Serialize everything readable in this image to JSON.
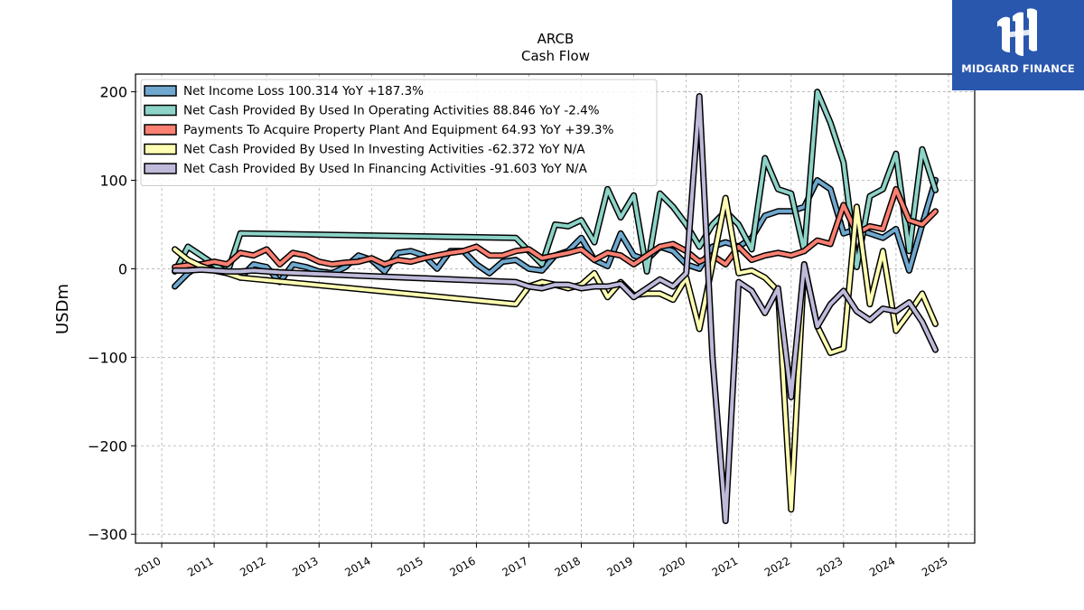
{
  "brand": {
    "name": "MIDGARD FINANCE",
    "bg_color": "#2a57ae"
  },
  "chart_data": {
    "type": "line",
    "title": "ARCB",
    "subtitle": "Cash Flow",
    "ylabel": "USDm",
    "xlabel": "",
    "xlim": [
      2009.5,
      2025.5
    ],
    "ylim": [
      -310,
      220
    ],
    "x_ticks": [
      2010,
      2011,
      2012,
      2013,
      2014,
      2015,
      2016,
      2017,
      2018,
      2019,
      2020,
      2021,
      2022,
      2023,
      2024,
      2025
    ],
    "y_ticks": [
      -300,
      -200,
      -100,
      0,
      100,
      200
    ],
    "y_tick_labels": [
      "−300",
      "−200",
      "−100",
      "0",
      "100",
      "200"
    ],
    "grid": true,
    "legend_position": "top-left",
    "series": [
      {
        "name": "Net Income Loss  100.314 YoY +187.3%",
        "color": "#6fa8cf",
        "points": [
          [
            2010.25,
            -20
          ],
          [
            2010.5,
            -5
          ],
          [
            2010.75,
            5
          ],
          [
            2011.0,
            2
          ],
          [
            2011.25,
            0
          ],
          [
            2011.5,
            -10
          ],
          [
            2011.75,
            5
          ],
          [
            2012.0,
            2
          ],
          [
            2012.25,
            -15
          ],
          [
            2012.5,
            5
          ],
          [
            2012.75,
            2
          ],
          [
            2013.0,
            -3
          ],
          [
            2013.25,
            -5
          ],
          [
            2013.5,
            2
          ],
          [
            2013.75,
            15
          ],
          [
            2014.0,
            10
          ],
          [
            2014.25,
            -3
          ],
          [
            2014.5,
            18
          ],
          [
            2014.75,
            20
          ],
          [
            2015.0,
            15
          ],
          [
            2015.25,
            0
          ],
          [
            2015.5,
            20
          ],
          [
            2015.75,
            20
          ],
          [
            2016.0,
            5
          ],
          [
            2016.25,
            -5
          ],
          [
            2016.5,
            8
          ],
          [
            2016.75,
            10
          ],
          [
            2017.0,
            0
          ],
          [
            2017.25,
            -2
          ],
          [
            2017.5,
            15
          ],
          [
            2017.75,
            20
          ],
          [
            2018.0,
            35
          ],
          [
            2018.25,
            10
          ],
          [
            2018.5,
            3
          ],
          [
            2018.75,
            40
          ],
          [
            2019.0,
            15
          ],
          [
            2019.25,
            10
          ],
          [
            2019.5,
            25
          ],
          [
            2019.75,
            20
          ],
          [
            2020.0,
            5
          ],
          [
            2020.25,
            0
          ],
          [
            2020.5,
            25
          ],
          [
            2020.75,
            30
          ],
          [
            2021.0,
            25
          ],
          [
            2021.25,
            35
          ],
          [
            2021.5,
            60
          ],
          [
            2021.75,
            65
          ],
          [
            2022.0,
            65
          ],
          [
            2022.25,
            70
          ],
          [
            2022.5,
            100
          ],
          [
            2022.75,
            90
          ],
          [
            2023.0,
            40
          ],
          [
            2023.25,
            45
          ],
          [
            2023.5,
            40
          ],
          [
            2023.75,
            35
          ],
          [
            2024.0,
            45
          ],
          [
            2024.25,
            -2
          ],
          [
            2024.5,
            50
          ],
          [
            2024.75,
            100.314
          ]
        ]
      },
      {
        "name": "Net Cash Provided By Used In Operating Activities  88.846 YoY -2.4%",
        "color": "#8dd3c7",
        "points": [
          [
            2010.25,
            -3
          ],
          [
            2010.5,
            25
          ],
          [
            2010.75,
            15
          ],
          [
            2011.0,
            5
          ],
          [
            2011.25,
            -5
          ],
          [
            2011.5,
            40
          ],
          [
            2016.75,
            35
          ],
          [
            2017.0,
            20
          ],
          [
            2017.25,
            5
          ],
          [
            2017.5,
            50
          ],
          [
            2017.75,
            48
          ],
          [
            2018.0,
            55
          ],
          [
            2018.25,
            30
          ],
          [
            2018.5,
            90
          ],
          [
            2018.75,
            58
          ],
          [
            2019.0,
            83
          ],
          [
            2019.25,
            -3
          ],
          [
            2019.5,
            85
          ],
          [
            2019.75,
            70
          ],
          [
            2020.0,
            50
          ],
          [
            2020.25,
            25
          ],
          [
            2020.5,
            50
          ],
          [
            2020.75,
            65
          ],
          [
            2021.0,
            50
          ],
          [
            2021.25,
            22
          ],
          [
            2021.5,
            125
          ],
          [
            2021.75,
            90
          ],
          [
            2022.0,
            85
          ],
          [
            2022.25,
            20
          ],
          [
            2022.5,
            200
          ],
          [
            2022.75,
            165
          ],
          [
            2023.0,
            120
          ],
          [
            2023.25,
            2
          ],
          [
            2023.5,
            82
          ],
          [
            2023.75,
            90
          ],
          [
            2024.0,
            130
          ],
          [
            2024.25,
            20
          ],
          [
            2024.5,
            135
          ],
          [
            2024.75,
            88.846
          ]
        ]
      },
      {
        "name": "Payments To Acquire Property Plant And Equipment  64.93 YoY +39.3%",
        "color": "#fb8072",
        "points": [
          [
            2010.25,
            2
          ],
          [
            2010.5,
            4
          ],
          [
            2010.75,
            5
          ],
          [
            2011.0,
            8
          ],
          [
            2011.25,
            5
          ],
          [
            2011.5,
            18
          ],
          [
            2011.75,
            15
          ],
          [
            2012.0,
            22
          ],
          [
            2012.25,
            5
          ],
          [
            2012.5,
            18
          ],
          [
            2012.75,
            15
          ],
          [
            2013.0,
            8
          ],
          [
            2013.25,
            5
          ],
          [
            2013.5,
            7
          ],
          [
            2013.75,
            8
          ],
          [
            2014.0,
            12
          ],
          [
            2014.25,
            5
          ],
          [
            2014.5,
            10
          ],
          [
            2014.75,
            8
          ],
          [
            2015.0,
            12
          ],
          [
            2015.25,
            15
          ],
          [
            2015.5,
            18
          ],
          [
            2015.75,
            20
          ],
          [
            2016.0,
            25
          ],
          [
            2016.25,
            15
          ],
          [
            2016.5,
            15
          ],
          [
            2016.75,
            20
          ],
          [
            2017.0,
            22
          ],
          [
            2017.25,
            12
          ],
          [
            2017.5,
            15
          ],
          [
            2017.75,
            18
          ],
          [
            2018.0,
            22
          ],
          [
            2018.25,
            10
          ],
          [
            2018.5,
            18
          ],
          [
            2018.75,
            15
          ],
          [
            2019.0,
            5
          ],
          [
            2019.25,
            15
          ],
          [
            2019.5,
            25
          ],
          [
            2019.75,
            28
          ],
          [
            2020.0,
            20
          ],
          [
            2020.25,
            8
          ],
          [
            2020.5,
            15
          ],
          [
            2020.75,
            5
          ],
          [
            2021.0,
            25
          ],
          [
            2021.25,
            10
          ],
          [
            2021.5,
            15
          ],
          [
            2021.75,
            18
          ],
          [
            2022.0,
            15
          ],
          [
            2022.25,
            20
          ],
          [
            2022.5,
            32
          ],
          [
            2022.75,
            28
          ],
          [
            2023.0,
            72
          ],
          [
            2023.25,
            40
          ],
          [
            2023.5,
            48
          ],
          [
            2023.75,
            45
          ],
          [
            2024.0,
            90
          ],
          [
            2024.25,
            55
          ],
          [
            2024.5,
            50
          ],
          [
            2024.75,
            64.93
          ]
        ]
      },
      {
        "name": "Net Cash Provided By Used In Investing Activities  -62.372 YoY N/A",
        "color": "#ffffb3",
        "points": [
          [
            2010.25,
            22
          ],
          [
            2010.5,
            10
          ],
          [
            2010.75,
            3
          ],
          [
            2011.0,
            -2
          ],
          [
            2011.25,
            -5
          ],
          [
            2011.5,
            -10
          ],
          [
            2016.75,
            -40
          ],
          [
            2017.0,
            -20
          ],
          [
            2017.25,
            -15
          ],
          [
            2017.5,
            -18
          ],
          [
            2017.75,
            -22
          ],
          [
            2018.0,
            -18
          ],
          [
            2018.25,
            -5
          ],
          [
            2018.5,
            -32
          ],
          [
            2018.75,
            -15
          ],
          [
            2019.0,
            -30
          ],
          [
            2019.25,
            -28
          ],
          [
            2019.5,
            -28
          ],
          [
            2019.75,
            -35
          ],
          [
            2020.0,
            -10
          ],
          [
            2020.25,
            -68
          ],
          [
            2020.5,
            5
          ],
          [
            2020.75,
            80
          ],
          [
            2021.0,
            -5
          ],
          [
            2021.25,
            -2
          ],
          [
            2021.5,
            -10
          ],
          [
            2021.75,
            -25
          ],
          [
            2022.0,
            -272
          ],
          [
            2022.25,
            5
          ],
          [
            2022.5,
            -65
          ],
          [
            2022.75,
            -95
          ],
          [
            2023.0,
            -90
          ],
          [
            2023.25,
            70
          ],
          [
            2023.5,
            -40
          ],
          [
            2023.75,
            20
          ],
          [
            2024.0,
            -70
          ],
          [
            2024.25,
            -50
          ],
          [
            2024.5,
            -28
          ],
          [
            2024.75,
            -62.372
          ]
        ]
      },
      {
        "name": "Net Cash Provided By Used In Financing Activities  -91.603 YoY N/A",
        "color": "#bebada",
        "points": [
          [
            2010.25,
            -2
          ],
          [
            2010.5,
            -2
          ],
          [
            2010.75,
            -1
          ],
          [
            2011.0,
            -2
          ],
          [
            2011.25,
            -3
          ],
          [
            2011.5,
            -3
          ],
          [
            2011.75,
            -2
          ],
          [
            2012.0,
            -3
          ],
          [
            2012.25,
            -4
          ],
          [
            2016.75,
            -15
          ],
          [
            2017.0,
            -20
          ],
          [
            2017.25,
            -22
          ],
          [
            2017.5,
            -18
          ],
          [
            2017.75,
            -18
          ],
          [
            2018.0,
            -22
          ],
          [
            2018.25,
            -20
          ],
          [
            2018.5,
            -20
          ],
          [
            2018.75,
            -17
          ],
          [
            2019.0,
            -32
          ],
          [
            2019.25,
            -22
          ],
          [
            2019.5,
            -12
          ],
          [
            2019.75,
            -20
          ],
          [
            2020.0,
            -5
          ],
          [
            2020.25,
            195
          ],
          [
            2020.5,
            -100
          ],
          [
            2020.75,
            -285
          ],
          [
            2021.0,
            -15
          ],
          [
            2021.25,
            -25
          ],
          [
            2021.5,
            -50
          ],
          [
            2021.75,
            -22
          ],
          [
            2022.0,
            -145
          ],
          [
            2022.25,
            5
          ],
          [
            2022.5,
            -65
          ],
          [
            2022.75,
            -40
          ],
          [
            2023.0,
            -25
          ],
          [
            2023.25,
            -48
          ],
          [
            2023.5,
            -58
          ],
          [
            2023.75,
            -45
          ],
          [
            2024.0,
            -48
          ],
          [
            2024.25,
            -38
          ],
          [
            2024.5,
            -60
          ],
          [
            2024.75,
            -91.603
          ]
        ]
      }
    ]
  }
}
